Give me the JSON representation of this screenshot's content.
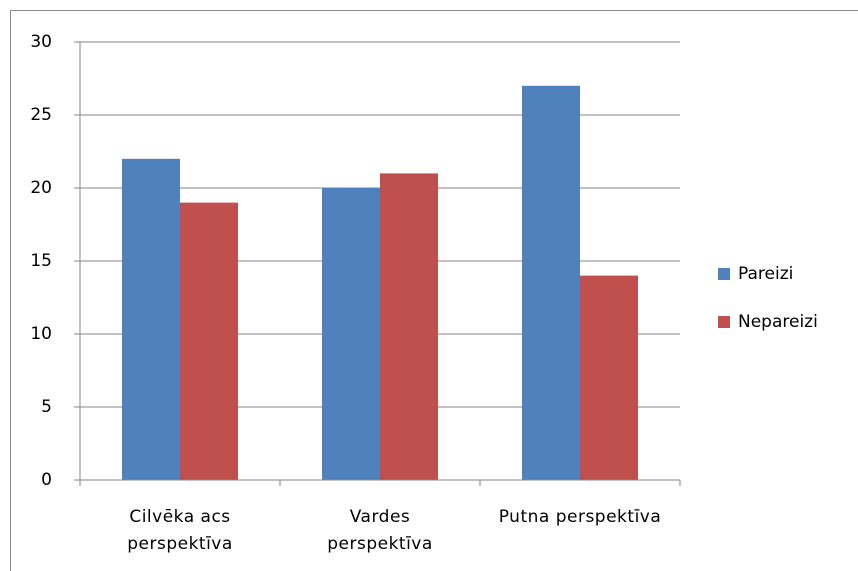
{
  "chart_data": {
    "type": "bar",
    "categories": [
      "Cilvēka acs\nperspektīva",
      "Vardes\nperspektīva",
      "Putna perspektīva"
    ],
    "series": [
      {
        "name": "Pareizi",
        "color": "#4f81bd",
        "values": [
          22,
          20,
          27
        ]
      },
      {
        "name": "Nepareizi",
        "color": "#c0504d",
        "values": [
          19,
          21,
          14
        ]
      }
    ],
    "ylim": [
      0,
      30
    ],
    "yticks": [
      0,
      5,
      10,
      15,
      20,
      25,
      30
    ],
    "grid": true,
    "legend": "right"
  }
}
